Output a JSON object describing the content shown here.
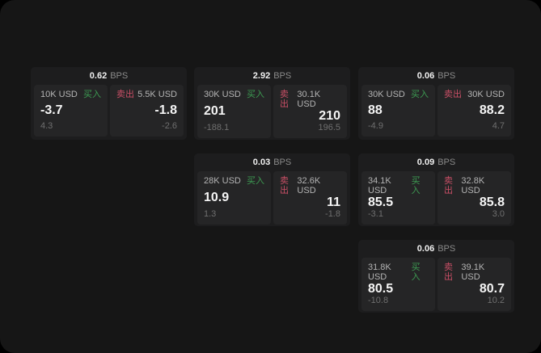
{
  "colors": {
    "window_bg": "#161616",
    "card_bg": "#1d1d1e",
    "panel_bg": "#252526",
    "buy_green": "#3d9b52",
    "sell_red": "#c94f66"
  },
  "labels": {
    "buy": "买入",
    "sell": "卖出",
    "bps_unit": "BPS"
  },
  "cards": [
    {
      "bps": "0.62",
      "buy": {
        "notional": "10K USD",
        "value": "-3.7",
        "delta": "4.3"
      },
      "sell": {
        "notional": "5.5K USD",
        "value": "-1.8",
        "delta": "-2.6"
      }
    },
    {
      "bps": "2.92",
      "buy": {
        "notional": "30K USD",
        "value": "201",
        "delta": "-188.1"
      },
      "sell": {
        "notional": "30.1K USD",
        "value": "210",
        "delta": "196.5"
      }
    },
    {
      "bps": "0.06",
      "buy": {
        "notional": "30K USD",
        "value": "88",
        "delta": "-4.9"
      },
      "sell": {
        "notional": "30K USD",
        "value": "88.2",
        "delta": "4.7"
      }
    },
    {
      "bps": "0.03",
      "buy": {
        "notional": "28K USD",
        "value": "10.9",
        "delta": "1.3"
      },
      "sell": {
        "notional": "32.6K USD",
        "value": "11",
        "delta": "-1.8"
      }
    },
    {
      "bps": "0.09",
      "buy": {
        "notional": "34.1K USD",
        "value": "85.5",
        "delta": "-3.1"
      },
      "sell": {
        "notional": "32.8K USD",
        "value": "85.8",
        "delta": "3.0"
      }
    },
    {
      "bps": "0.06",
      "buy": {
        "notional": "31.8K USD",
        "value": "80.5",
        "delta": "-10.8"
      },
      "sell": {
        "notional": "39.1K USD",
        "value": "80.7",
        "delta": "10.2"
      }
    }
  ]
}
